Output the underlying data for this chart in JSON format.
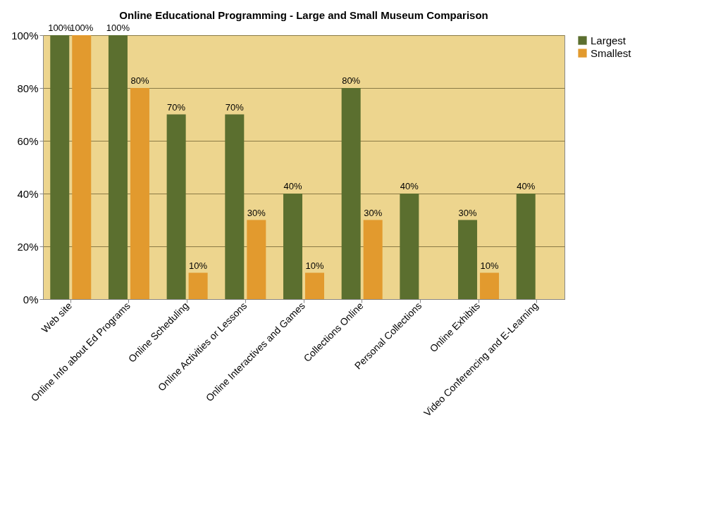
{
  "chart_data": {
    "type": "bar",
    "title": "Online Educational Programming - Large and Small Museum Comparison",
    "categories": [
      "Web site",
      "Online Info about Ed Programs",
      "Online Scheduling",
      "Online Activities or Lessons",
      "Online Interactives and Games",
      "Collections Online",
      "Personal Collections",
      "Online Exhibits",
      "Video Conferencing and E-Learning"
    ],
    "series": [
      {
        "name": "Largest",
        "color": "#5b6f2f",
        "values": [
          100,
          100,
          70,
          70,
          40,
          80,
          40,
          30,
          40
        ],
        "value_labels": [
          "100%",
          "100%",
          "70%",
          "70%",
          "40%",
          "80%",
          "40%",
          "30%",
          "40%"
        ]
      },
      {
        "name": "Smallest",
        "color": "#e29a2e",
        "values": [
          100,
          80,
          10,
          30,
          10,
          30,
          0,
          10,
          0
        ],
        "value_labels": [
          "100%",
          "80%",
          "10%",
          "30%",
          "10%",
          "30%",
          null,
          "10%",
          null
        ]
      }
    ],
    "ylim": [
      0,
      100
    ],
    "yticks": [
      {
        "value": 0,
        "label": "0%"
      },
      {
        "value": 20,
        "label": "20%"
      },
      {
        "value": 40,
        "label": "40%"
      },
      {
        "value": 60,
        "label": "60%"
      },
      {
        "value": 80,
        "label": "80%"
      },
      {
        "value": 100,
        "label": "100%"
      }
    ],
    "grid": "y",
    "legend": "right"
  }
}
